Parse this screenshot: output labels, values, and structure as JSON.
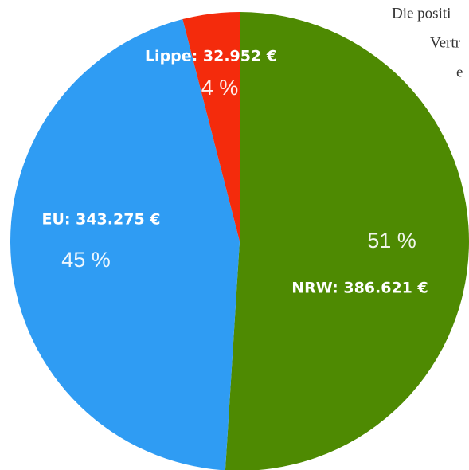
{
  "chart_data": {
    "type": "pie",
    "categories": [
      "NRW",
      "EU",
      "Lippe"
    ],
    "labels": [
      "NRW: 386.621 €",
      "EU: 343.275 €",
      "Lippe: 32.952 €"
    ],
    "values": [
      51,
      45,
      4
    ],
    "value_labels": [
      "51 %",
      "45 %",
      "4 %"
    ],
    "colors": [
      "#4e8a02",
      "#2f9cf3",
      "#f42b0c"
    ],
    "annotations": [
      "Die positi",
      "Vertr",
      "e"
    ]
  }
}
